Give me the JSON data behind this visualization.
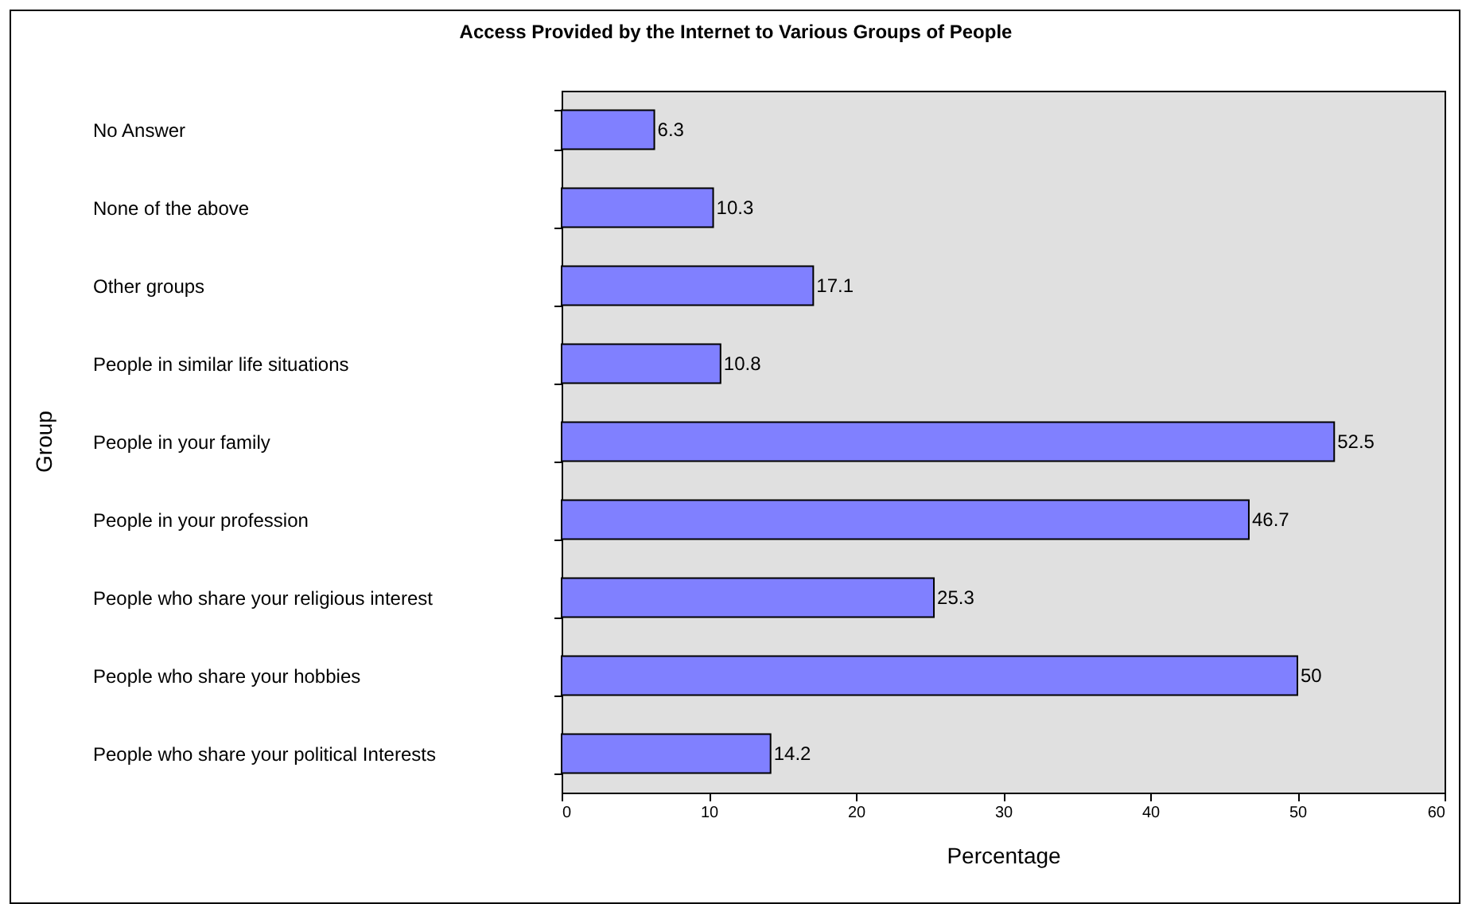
{
  "chart_data": {
    "type": "bar",
    "orientation": "horizontal",
    "title": "Access Provided by the Internet to Various Groups of People",
    "xlabel": "Percentage",
    "ylabel": "Group",
    "categories": [
      "No Answer",
      "None of the above",
      "Other groups",
      "People in similar life situations",
      "People in your family",
      "People in your profession",
      "People who share your religious interest",
      "People who share your hobbies",
      "People who share your political Interests"
    ],
    "values": [
      6.3,
      10.3,
      17.1,
      10.8,
      52.5,
      46.7,
      25.3,
      50,
      14.2
    ],
    "color": "#8080ff",
    "xlim": [
      0,
      60
    ],
    "xticks": [
      0,
      10,
      20,
      30,
      40,
      50,
      60
    ],
    "data_labels": true,
    "grid": false
  }
}
